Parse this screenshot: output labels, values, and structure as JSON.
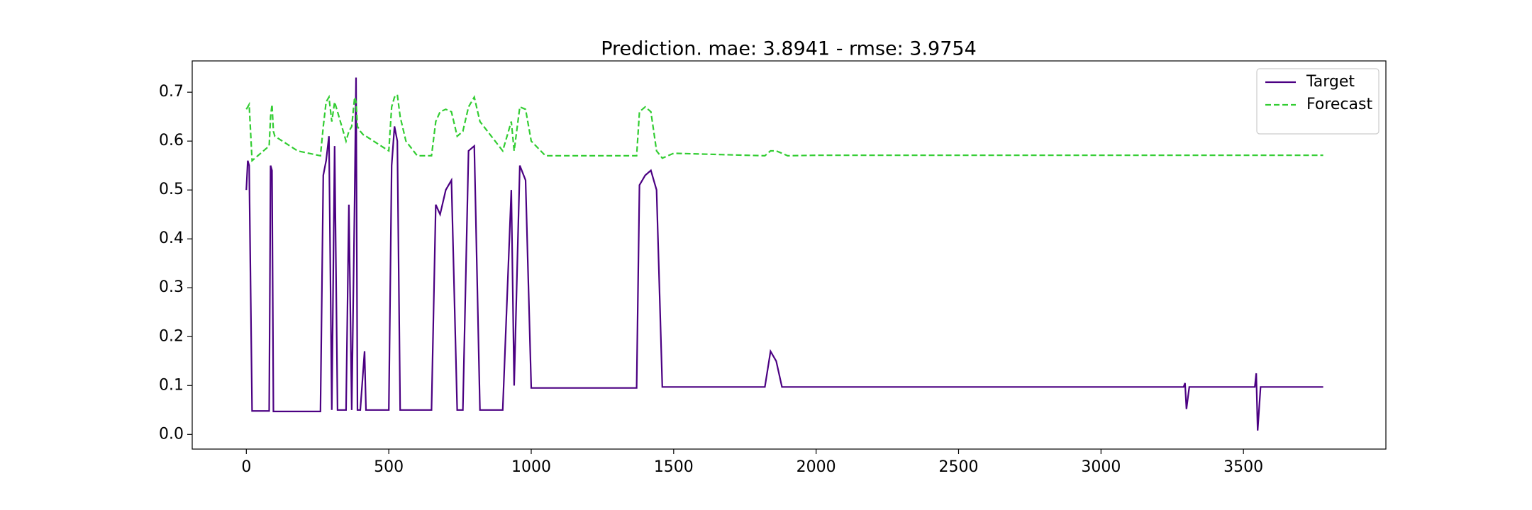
{
  "chart_data": {
    "type": "line",
    "title": "Prediction. mae: 3.8941 - rmse: 3.9754",
    "x": [
      0,
      5,
      10,
      20,
      80,
      85,
      90,
      95,
      100,
      180,
      260,
      270,
      280,
      290,
      300,
      310,
      320,
      350,
      360,
      370,
      380,
      385,
      390,
      400,
      415,
      420,
      500,
      510,
      520,
      530,
      540,
      560,
      600,
      650,
      665,
      680,
      700,
      720,
      740,
      760,
      780,
      800,
      820,
      900,
      930,
      940,
      960,
      980,
      1000,
      1050,
      1370,
      1380,
      1400,
      1420,
      1440,
      1460,
      1500,
      1820,
      1840,
      1860,
      1880,
      1900,
      2000,
      2500,
      3290,
      3295,
      3300,
      3310,
      3540,
      3545,
      3550,
      3560,
      3780
    ],
    "series": [
      {
        "name": "Target",
        "color": "#4b0082",
        "dash": false,
        "values": [
          0.5,
          0.56,
          0.55,
          0.048,
          0.048,
          0.55,
          0.54,
          0.047,
          0.047,
          0.047,
          0.047,
          0.53,
          0.56,
          0.61,
          0.05,
          0.59,
          0.05,
          0.05,
          0.47,
          0.05,
          0.48,
          0.73,
          0.05,
          0.05,
          0.17,
          0.05,
          0.05,
          0.55,
          0.63,
          0.6,
          0.05,
          0.05,
          0.05,
          0.05,
          0.47,
          0.45,
          0.5,
          0.52,
          0.05,
          0.05,
          0.58,
          0.59,
          0.05,
          0.05,
          0.5,
          0.1,
          0.55,
          0.52,
          0.095,
          0.095,
          0.095,
          0.51,
          0.53,
          0.54,
          0.5,
          0.097,
          0.097,
          0.097,
          0.17,
          0.15,
          0.097,
          0.097,
          0.097,
          0.097,
          0.097,
          0.105,
          0.052,
          0.097,
          0.097,
          0.125,
          0.008,
          0.097,
          0.097
        ]
      },
      {
        "name": "Forecast",
        "color": "#32cd32",
        "dash": true,
        "values": [
          0.665,
          0.67,
          0.675,
          0.56,
          0.59,
          0.65,
          0.675,
          0.62,
          0.61,
          0.58,
          0.57,
          0.63,
          0.68,
          0.69,
          0.64,
          0.68,
          0.66,
          0.6,
          0.62,
          0.63,
          0.69,
          0.68,
          0.63,
          0.62,
          0.61,
          0.61,
          0.58,
          0.67,
          0.69,
          0.695,
          0.65,
          0.6,
          0.57,
          0.57,
          0.64,
          0.66,
          0.665,
          0.66,
          0.61,
          0.62,
          0.67,
          0.69,
          0.64,
          0.58,
          0.64,
          0.58,
          0.67,
          0.665,
          0.6,
          0.57,
          0.57,
          0.66,
          0.67,
          0.66,
          0.58,
          0.565,
          0.575,
          0.57,
          0.58,
          0.58,
          0.575,
          0.57,
          0.571,
          0.571,
          0.571,
          0.571,
          0.571,
          0.571,
          0.571,
          0.571,
          0.571,
          0.571,
          0.571
        ]
      }
    ],
    "xlim": [
      -190,
      4000
    ],
    "ylim": [
      -0.03,
      0.764
    ],
    "xticks": [
      0,
      500,
      1000,
      1500,
      2000,
      2500,
      3000,
      3500
    ],
    "yticks": [
      {
        "value": 0,
        "label": "0.0"
      },
      0.1,
      0.2,
      0.3,
      0.4,
      0.5,
      0.6,
      0.7
    ],
    "legend": "upper right"
  }
}
